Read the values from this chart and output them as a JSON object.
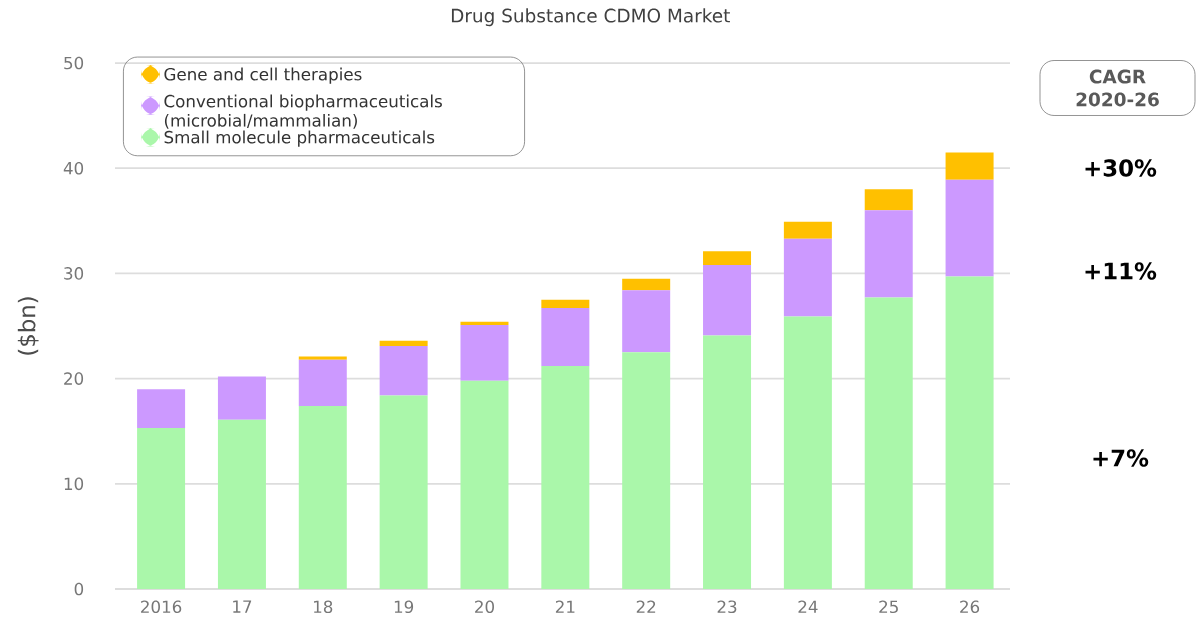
{
  "chart_data": {
    "type": "bar",
    "title": "Drug Substance CDMO Market",
    "ylabel": "($bn)",
    "categories": [
      "2016",
      "17",
      "18",
      "19",
      "20",
      "21",
      "22",
      "23",
      "24",
      "25",
      "26"
    ],
    "stacked": true,
    "series": [
      {
        "name": "Small molecule pharmaceuticals",
        "color": "#aaf7aa",
        "values": [
          15.3,
          16.1,
          17.4,
          18.4,
          19.8,
          21.2,
          22.5,
          24.1,
          25.9,
          27.7,
          29.7
        ]
      },
      {
        "name": "Conventional biopharmaceuticals (microbial/mammalian)",
        "color": "#cc99ff",
        "values": [
          3.7,
          4.1,
          4.4,
          4.7,
          5.3,
          5.5,
          5.9,
          6.7,
          7.4,
          8.3,
          9.2
        ]
      },
      {
        "name": "Gene and cell therapies",
        "color": "#ffc000",
        "values": [
          0,
          0,
          0.3,
          0.5,
          0.3,
          0.8,
          1.1,
          1.3,
          1.6,
          2.0,
          2.6
        ]
      }
    ],
    "ylim": [
      0,
      50
    ],
    "yticks": [
      0,
      10,
      20,
      30,
      40,
      50
    ],
    "grid": "y",
    "legend": "top left",
    "annotations": [
      "CAGR 2020-26",
      "+30%",
      "+11%",
      "+7%"
    ]
  }
}
